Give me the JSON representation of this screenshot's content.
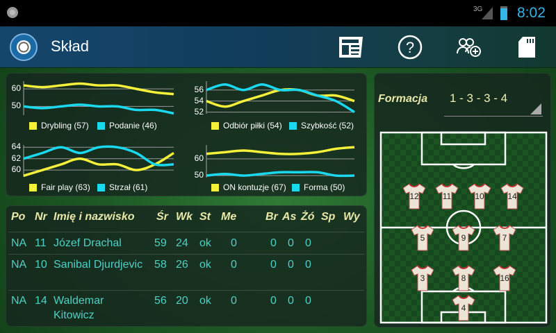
{
  "status_bar": {
    "network": "3G",
    "time": "8:02"
  },
  "action_bar": {
    "title": "Skład",
    "icons": [
      "newspaper-icon",
      "help-icon",
      "add-group-icon",
      "sd-card-icon"
    ]
  },
  "colors": {
    "yellow": "#f5f03a",
    "cyan": "#1ad8ee",
    "accent": "#33b5e5",
    "table_text": "#4fd1c5",
    "header_text": "#e8e8a8"
  },
  "chart_data": [
    {
      "type": "line",
      "yticks": [
        "60",
        "50"
      ],
      "ytick_values": [
        60,
        50
      ],
      "ylim": [
        45,
        64.4
      ],
      "grid": true,
      "legend": "bottom",
      "series": [
        {
          "name": "Drybling (57)",
          "color": "#f5f03a",
          "values": [
            62,
            61,
            62,
            63,
            62,
            62,
            60,
            58,
            57
          ]
        },
        {
          "name": "Podanie (46)",
          "color": "#1ad8ee",
          "values": [
            50,
            49,
            50,
            51,
            50,
            50,
            48,
            48,
            46
          ]
        }
      ]
    },
    {
      "type": "line",
      "yticks": [
        "56",
        "54",
        "52"
      ],
      "ytick_values": [
        56,
        54,
        52
      ],
      "ylim": [
        51.7,
        57.6
      ],
      "grid": true,
      "legend": "bottom",
      "series": [
        {
          "name": "Odbiór piłki (54)",
          "color": "#f5f03a",
          "values": [
            54,
            53,
            54,
            55,
            56,
            56,
            55,
            55,
            54
          ]
        },
        {
          "name": "Szybkość (52)",
          "color": "#1ad8ee",
          "values": [
            56,
            57,
            56,
            57,
            56,
            56,
            55,
            54,
            52
          ]
        }
      ]
    },
    {
      "type": "line",
      "yticks": [
        "64",
        "62",
        "60"
      ],
      "ytick_values": [
        64,
        62,
        60
      ],
      "ylim": [
        58.8,
        64.4
      ],
      "grid": true,
      "legend": "bottom",
      "series": [
        {
          "name": "Fair play (63)",
          "color": "#f5f03a",
          "values": [
            59,
            60,
            61,
            62,
            61,
            61,
            60,
            61,
            63
          ]
        },
        {
          "name": "Strzał (61)",
          "color": "#1ad8ee",
          "values": [
            62,
            63,
            64,
            63,
            64,
            64,
            63,
            61,
            61
          ]
        }
      ]
    },
    {
      "type": "line",
      "yticks": [
        "60",
        "50"
      ],
      "ytick_values": [
        60,
        50
      ],
      "ylim": [
        48.8,
        68.3
      ],
      "grid": true,
      "legend": "bottom",
      "series": [
        {
          "name": "ON kontuzje (67)",
          "color": "#f5f03a",
          "values": [
            63,
            64,
            65,
            64,
            63,
            63,
            64,
            66,
            67
          ]
        },
        {
          "name": "Forma (50)",
          "color": "#1ad8ee",
          "values": [
            50,
            51,
            50,
            51,
            52,
            52,
            52,
            50,
            50
          ]
        }
      ]
    }
  ],
  "table": {
    "headers": [
      "Po",
      "Nr",
      "Imię i nazwisko",
      "Śr",
      "Wk",
      "St",
      "Me",
      "Br",
      "As",
      "Żó",
      "Sp",
      "Wy"
    ],
    "rows": [
      {
        "po": "NA",
        "nr": "11",
        "name": "Józef Drachal",
        "sr": "59",
        "wk": "24",
        "st": "ok",
        "me": "0",
        "br": "0",
        "as": "0",
        "zo": "0"
      },
      {
        "po": "NA",
        "nr": "10",
        "name": "Sanibal Djurdjevic",
        "sr": "58",
        "wk": "26",
        "st": "ok",
        "me": "0",
        "br": "0",
        "as": "0",
        "zo": "0"
      },
      {
        "po": "NA",
        "nr": "14",
        "name": "Waldemar Kitowicz",
        "sr": "56",
        "wk": "20",
        "st": "ok",
        "me": "0",
        "br": "0",
        "as": "0",
        "zo": "0"
      }
    ]
  },
  "formation": {
    "label": "Formacja",
    "value": "1 - 3 - 3 - 4",
    "players": [
      "12",
      "11",
      "10",
      "14",
      "5",
      "9",
      "7",
      "3",
      "8",
      "16",
      "4"
    ]
  }
}
